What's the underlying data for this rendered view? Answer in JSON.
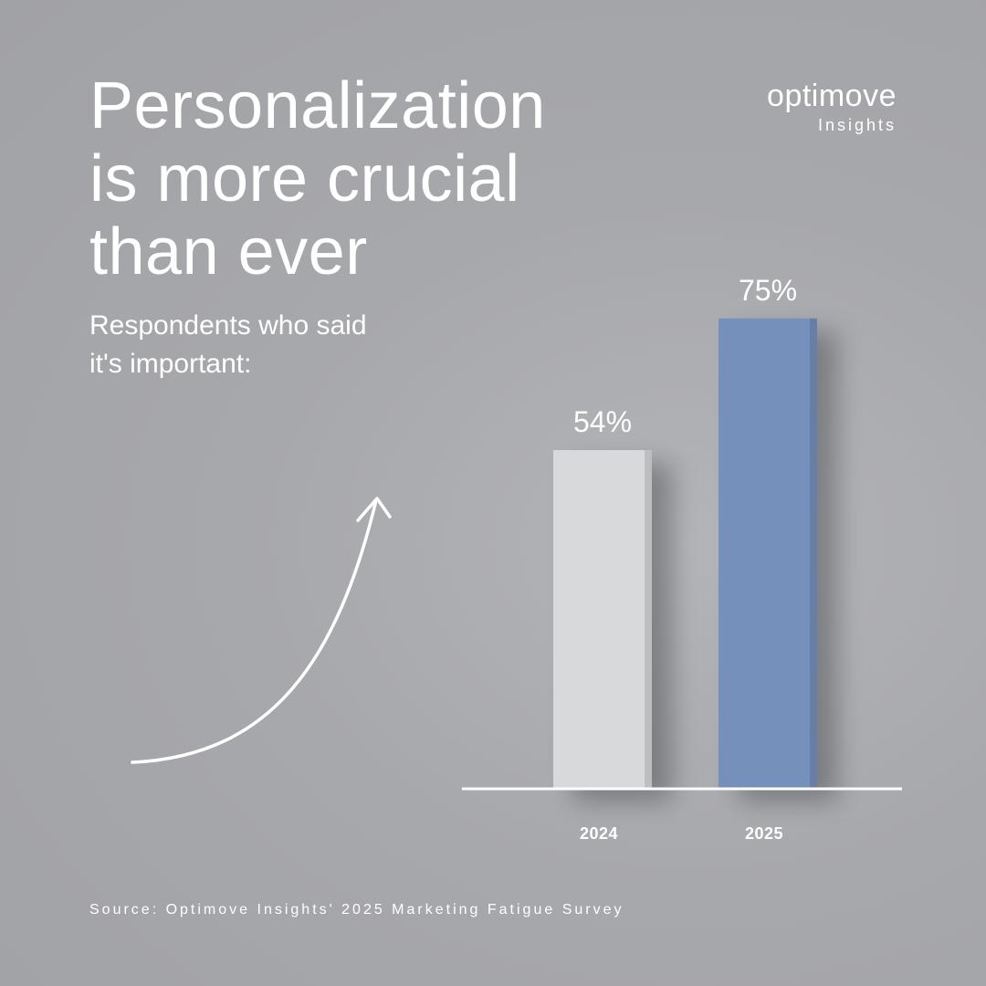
{
  "headline": {
    "lines": [
      "Personalization",
      "is more crucial",
      "than ever"
    ]
  },
  "subhead": {
    "lines": [
      "Respondents who said",
      "it's important:"
    ]
  },
  "brand": {
    "name": "optimove",
    "sub": "Insights"
  },
  "source": "Source: Optimove Insights' 2025 Marketing Fatigue Survey",
  "colors": {
    "background": "#a7a8ac",
    "bar_2024": "#d8d9da",
    "bar_2025": "#7690bc",
    "text": "#ffffff"
  },
  "icons": {
    "arrow": "curved-up-arrow-icon"
  },
  "chart_data": {
    "type": "bar",
    "categories": [
      "2024",
      "2025"
    ],
    "values": [
      54,
      75
    ],
    "value_labels": [
      "54%",
      "75%"
    ],
    "title": "",
    "xlabel": "",
    "ylabel": "",
    "ylim": [
      0,
      100
    ],
    "grid": false,
    "colors": [
      "#d8d9da",
      "#7690bc"
    ]
  }
}
